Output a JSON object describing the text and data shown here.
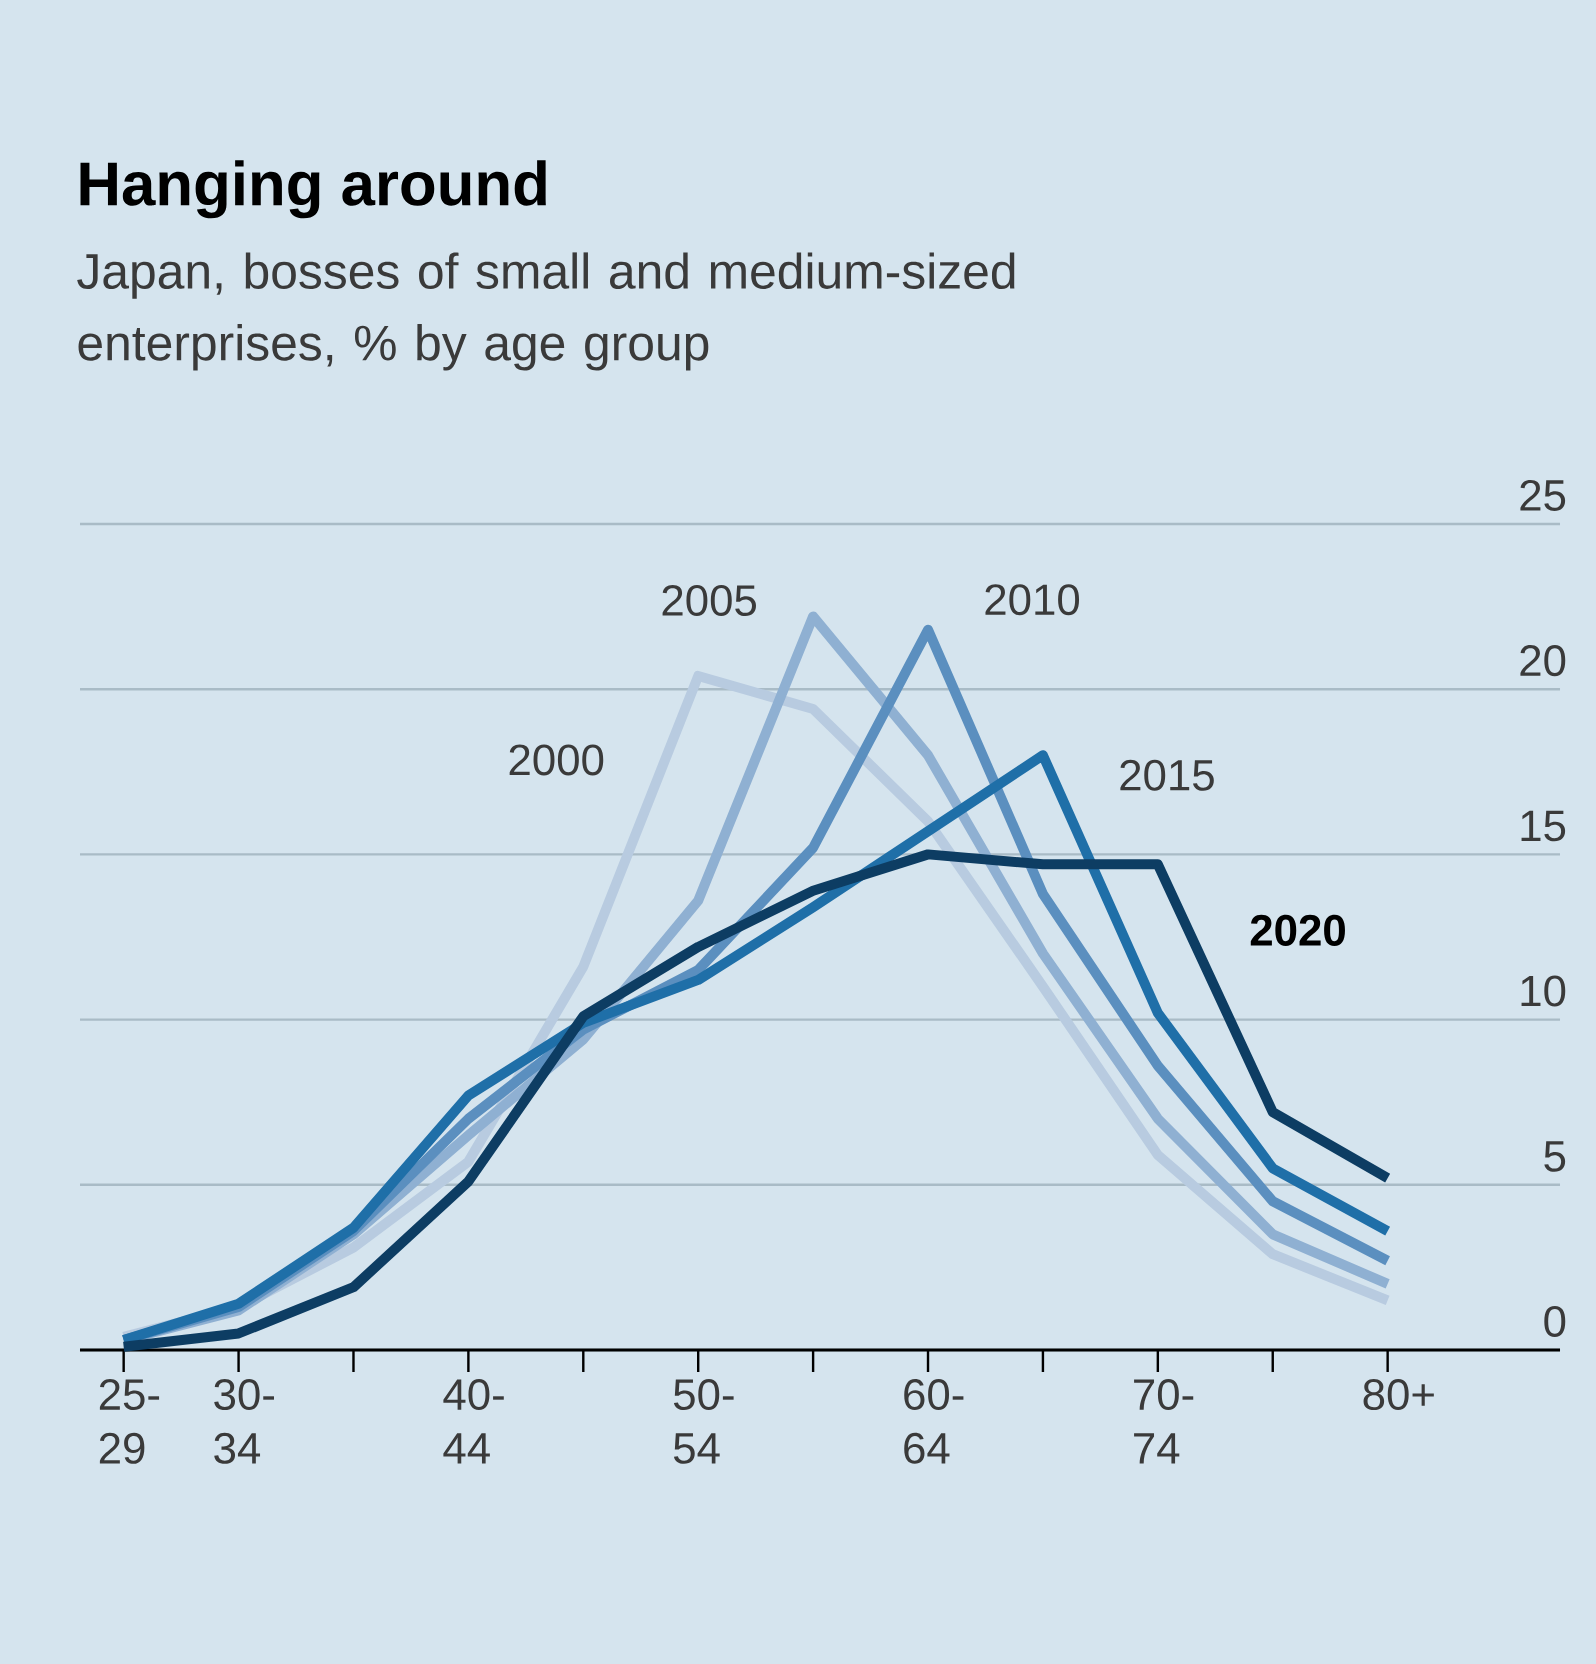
{
  "chart_data": {
    "type": "line",
    "title": "Hanging around",
    "subtitle": "Japan, bosses of small and medium-sized enterprises, % by age group",
    "categories": [
      "25-29",
      "30-34",
      null,
      "40-44",
      null,
      "50-54",
      null,
      "60-64",
      null,
      "70-74",
      null,
      "80+"
    ],
    "series": [
      {
        "name": "2000",
        "color": "#b8cbe0",
        "values": [
          0.4,
          1.3,
          3.1,
          5.7,
          11.6,
          20.4,
          19.4,
          16.0,
          11.0,
          5.9,
          2.9,
          1.5
        ]
      },
      {
        "name": "2005",
        "color": "#8fb0d2",
        "values": [
          0.3,
          1.2,
          3.5,
          6.5,
          9.4,
          13.6,
          22.2,
          18.0,
          12.0,
          7.0,
          3.5,
          2.0
        ]
      },
      {
        "name": "2010",
        "color": "#5b8fbf",
        "values": [
          0.3,
          1.3,
          3.6,
          7.0,
          9.7,
          11.5,
          15.2,
          21.8,
          13.8,
          8.6,
          4.5,
          2.7
        ]
      },
      {
        "name": "2015",
        "color": "#1f6fa8",
        "values": [
          0.3,
          1.4,
          3.7,
          7.7,
          9.9,
          11.2,
          13.4,
          15.7,
          18.0,
          10.2,
          5.5,
          3.6
        ]
      },
      {
        "name": "2020",
        "color": "#0d3d63",
        "values": [
          0.1,
          0.5,
          1.9,
          5.1,
          10.1,
          12.2,
          13.9,
          15.0,
          14.7,
          14.7,
          7.2,
          5.2
        ]
      }
    ],
    "ylim": [
      0,
      25
    ],
    "yticks": [
      0,
      5,
      10,
      15,
      20,
      25
    ],
    "grid": "y",
    "marker": "none",
    "line_style": "solid"
  }
}
